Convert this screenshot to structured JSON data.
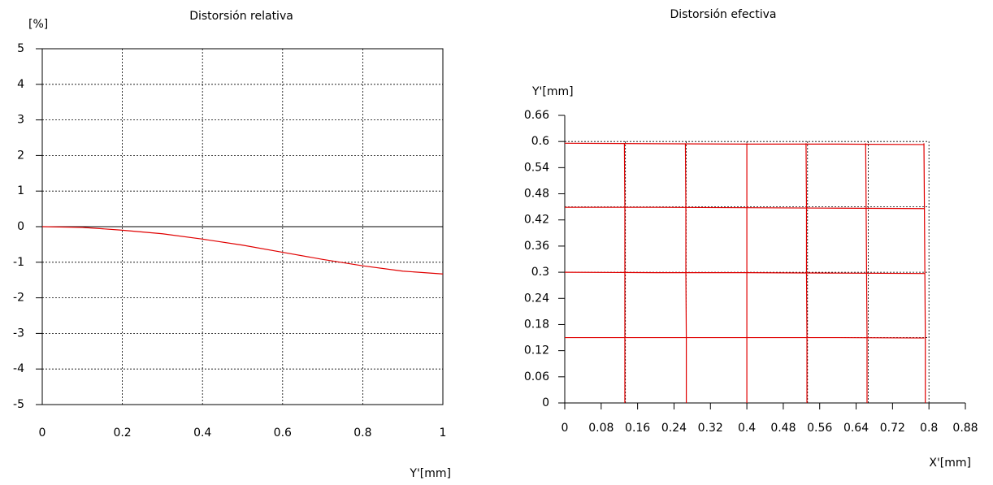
{
  "chart_data": [
    {
      "type": "line",
      "title": "Distorsión relativa",
      "ylabel": "[%]",
      "xlabel": "Y'[mm]",
      "xlim": [
        0,
        1
      ],
      "xticks": [
        0,
        0.2,
        0.4,
        0.6,
        0.8,
        1
      ],
      "ylim": [
        -5,
        5
      ],
      "yticks": [
        -5,
        -4,
        -3,
        -2,
        -1,
        0,
        1,
        2,
        3,
        4,
        5
      ],
      "grid": true,
      "series": [
        {
          "color": "#e00000",
          "x": [
            0,
            0.1,
            0.2,
            0.3,
            0.4,
            0.5,
            0.6,
            0.7,
            0.8,
            0.9,
            1
          ],
          "values": [
            0,
            -0.02,
            -0.1,
            -0.2,
            -0.35,
            -0.52,
            -0.72,
            -0.92,
            -1.1,
            -1.25,
            -1.33
          ]
        }
      ]
    },
    {
      "type": "line",
      "title": "Distorsión efectiva",
      "ylabel": "Y'[mm]",
      "xlabel": "X'[mm]",
      "xlim": [
        0,
        0.88
      ],
      "xticks": [
        0,
        0.08,
        0.16,
        0.24,
        0.32,
        0.4,
        0.48,
        0.56,
        0.64,
        0.72,
        0.8,
        0.88
      ],
      "ylim": [
        0,
        0.66
      ],
      "yticks": [
        0,
        0.06,
        0.12,
        0.18,
        0.24,
        0.3,
        0.36,
        0.42,
        0.48,
        0.54,
        0.6,
        0.66
      ],
      "grid": false,
      "ref_x": [
        0.1333,
        0.2667,
        0.4,
        0.5333,
        0.6667,
        0.8
      ],
      "ref_y": [
        0.15,
        0.3,
        0.45,
        0.6
      ],
      "series": [
        {
          "color": "#e00000",
          "x": [
            0,
            0.2,
            0.4,
            0.6,
            0.79
          ],
          "values": [
            0.15,
            0.15,
            0.15,
            0.15,
            0.149
          ]
        },
        {
          "color": "#e00000",
          "x": [
            0,
            0.2,
            0.4,
            0.6,
            0.79
          ],
          "values": [
            0.3,
            0.299,
            0.299,
            0.298,
            0.297
          ]
        },
        {
          "color": "#e00000",
          "x": [
            0,
            0.2,
            0.4,
            0.6,
            0.79
          ],
          "values": [
            0.449,
            0.449,
            0.448,
            0.447,
            0.446
          ]
        },
        {
          "color": "#e00000",
          "x": [
            0,
            0.2,
            0.4,
            0.6,
            0.79
          ],
          "values": [
            0.596,
            0.595,
            0.594,
            0.594,
            0.593
          ]
        },
        {
          "color": "#e00000",
          "x": [
            0.132,
            0.132,
            0.132,
            0.132,
            0.131
          ],
          "values": [
            0,
            0.15,
            0.3,
            0.45,
            0.596
          ]
        },
        {
          "color": "#e00000",
          "x": [
            0.267,
            0.267,
            0.266,
            0.266,
            0.265
          ],
          "values": [
            0,
            0.15,
            0.3,
            0.45,
            0.596
          ]
        },
        {
          "color": "#e00000",
          "x": [
            0.4,
            0.4,
            0.4,
            0.4,
            0.4
          ],
          "values": [
            0,
            0.15,
            0.3,
            0.45,
            0.596
          ]
        },
        {
          "color": "#e00000",
          "x": [
            0.532,
            0.532,
            0.531,
            0.531,
            0.53
          ],
          "values": [
            0,
            0.15,
            0.3,
            0.45,
            0.596
          ]
        },
        {
          "color": "#e00000",
          "x": [
            0.664,
            0.664,
            0.663,
            0.662,
            0.661
          ],
          "values": [
            0,
            0.15,
            0.3,
            0.45,
            0.596
          ]
        },
        {
          "color": "#e00000",
          "x": [
            0.792,
            0.792,
            0.791,
            0.79,
            0.789
          ],
          "values": [
            0,
            0.15,
            0.3,
            0.45,
            0.596
          ]
        }
      ]
    }
  ]
}
